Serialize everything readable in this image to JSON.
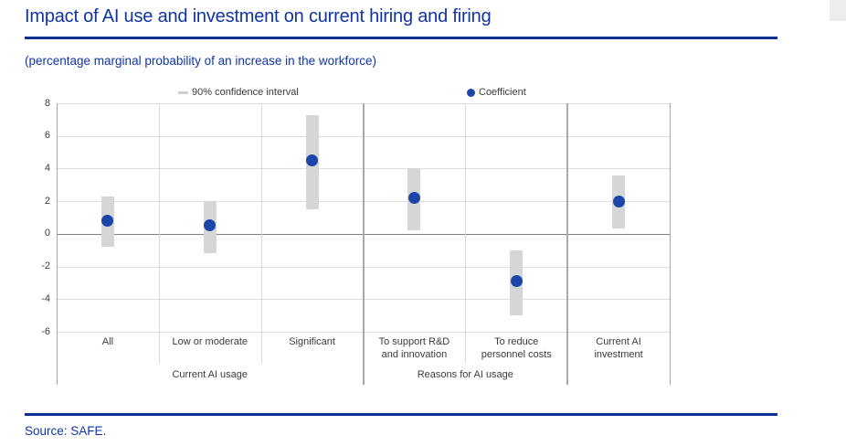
{
  "footer": {
    "source": "Source: SAFE."
  },
  "colors": {
    "title_blue": "#0f35a3",
    "rule_blue": "#0b3193",
    "coefficient_blue": "#1b45a8",
    "ci_bar_gray": "#d6d6d6",
    "gridline_gray": "#dcdcdc",
    "zero_line_gray": "#808080",
    "separator_light_gray": "#d9d9d9",
    "separator_dark_gray": "#a9a9a9",
    "axis_text_gray": "#3a3a3a",
    "scrollbar_gray": "#ededed"
  },
  "chart_data": {
    "type": "scatter",
    "subtype": "coefficient-plot-with-confidence-intervals",
    "title": "Impact of AI use and investment on current hiring and firing",
    "subtitle": "(percentage marginal probability of an increase in the workforce)",
    "xlabel": "",
    "ylabel": "",
    "ylim": [
      -6,
      8
    ],
    "yticks": [
      8,
      6,
      4,
      2,
      0,
      -2,
      -4,
      -6
    ],
    "grid": "horizontal",
    "legend_position": "top",
    "legend": [
      "90% confidence interval",
      "Coefficient"
    ],
    "categories": [
      "All",
      "Low or moderate",
      "Significant",
      "To support R&D and innovation",
      "To reduce personnel costs",
      "Current AI investment"
    ],
    "series": [
      {
        "name": "Coefficient",
        "marker": "dot",
        "values": [
          0.8,
          0.5,
          4.5,
          2.2,
          -2.9,
          2.0
        ]
      },
      {
        "name": "90% confidence interval",
        "marker": "range-bar",
        "lower": [
          -0.8,
          -1.2,
          1.5,
          0.2,
          -5.0,
          0.3
        ],
        "upper": [
          2.3,
          2.0,
          7.3,
          4.0,
          -1.0,
          3.6
        ]
      }
    ],
    "groups": [
      {
        "label": "Current AI usage",
        "from": 0,
        "to": 2
      },
      {
        "label": "Reasons for AI usage",
        "from": 3,
        "to": 4
      },
      {
        "label": "",
        "from": 5,
        "to": 5
      }
    ]
  }
}
